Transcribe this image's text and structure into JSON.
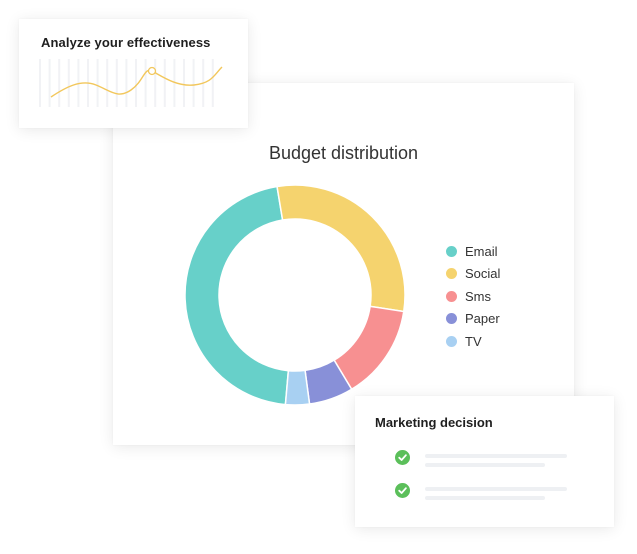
{
  "effectiveness_card": {
    "title": "Analyze your effectiveness",
    "line_color": "#f2c75c",
    "bar_color": "#f1f2f5"
  },
  "chart_data": {
    "type": "pie",
    "title": "Budget distribution",
    "donut": true,
    "legend_position": "right",
    "categories": [
      "Email",
      "Social",
      "Sms",
      "Paper",
      "TV"
    ],
    "values": [
      46,
      30,
      14,
      6.5,
      3.5
    ],
    "colors": [
      "#67d0c9",
      "#f5d36e",
      "#f79091",
      "#8890d8",
      "#a8d0f2"
    ]
  },
  "decision_card": {
    "title": "Marketing decision",
    "check_color": "#5bbf5a",
    "items": [
      {
        "icon": "check-circle-icon"
      },
      {
        "icon": "check-circle-icon"
      }
    ]
  }
}
